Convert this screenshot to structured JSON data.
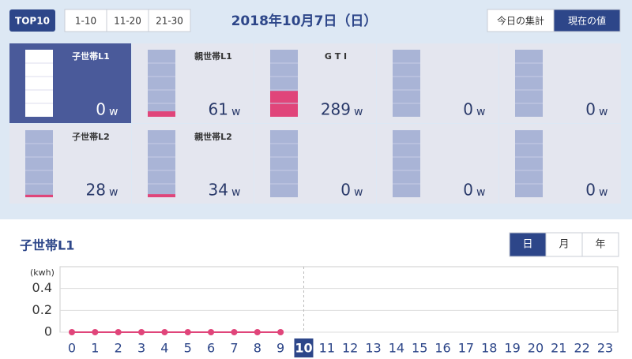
{
  "toolbar": {
    "top_button": "TOP10",
    "ranges": [
      "1-10",
      "11-20",
      "21-30"
    ],
    "date": "2018年10月7日（日）",
    "modes": [
      "今日の集計",
      "現在の値"
    ],
    "active_mode": 1
  },
  "tiles": {
    "unit": "w",
    "gauge_max": 750,
    "selected": 0,
    "items": [
      {
        "name": "子世帯L1",
        "value": 0
      },
      {
        "name": "親世帯L1",
        "value": 61
      },
      {
        "name": "G T I",
        "value": 289
      },
      {
        "name": null,
        "value": 0
      },
      {
        "name": null,
        "value": 0
      },
      {
        "name": "子世帯L2",
        "value": 28
      },
      {
        "name": "親世帯L2",
        "value": 34
      },
      {
        "name": null,
        "value": 0
      },
      {
        "name": null,
        "value": 0
      },
      {
        "name": null,
        "value": 0
      }
    ]
  },
  "chart_data": {
    "type": "line",
    "title": "子世帯L1",
    "periods": [
      "日",
      "月",
      "年"
    ],
    "active_period": 0,
    "y_label": "(kwh)",
    "categories": [
      "0",
      "1",
      "2",
      "3",
      "4",
      "5",
      "6",
      "7",
      "8",
      "9",
      "10",
      "11",
      "12",
      "13",
      "14",
      "15",
      "16",
      "17",
      "18",
      "19",
      "20",
      "21",
      "22",
      "23"
    ],
    "values": [
      0,
      0,
      0,
      0,
      0,
      0,
      0,
      0,
      0,
      0,
      null,
      null,
      null,
      null,
      null,
      null,
      null,
      null,
      null,
      null,
      null,
      null,
      null,
      null
    ],
    "color": "#e0457a",
    "current_index": 10,
    "ylim": [
      0,
      0.6
    ],
    "yticks": [
      0,
      0.2,
      0.4
    ],
    "grid": true
  }
}
